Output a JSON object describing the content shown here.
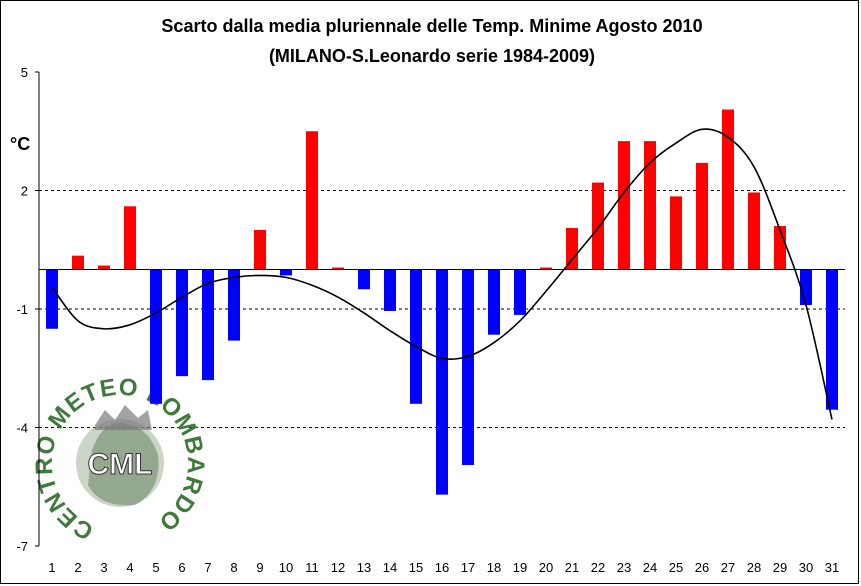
{
  "chart_data": {
    "type": "bar",
    "title": "Scarto dalla media pluriennale delle Temp. Minime Agosto 2010",
    "subtitle": "(MILANO-S.Leonardo serie 1984-2009)",
    "ylabel": "°C",
    "xlabel": "",
    "ylim": [
      -7,
      5
    ],
    "yticks": [
      5,
      2,
      -1,
      -4,
      -7
    ],
    "grid": "horizontal dashed at 2, -1, -4",
    "categories": [
      "1",
      "2",
      "3",
      "4",
      "5",
      "6",
      "7",
      "8",
      "9",
      "10",
      "11",
      "12",
      "13",
      "14",
      "15",
      "16",
      "17",
      "18",
      "19",
      "20",
      "21",
      "22",
      "23",
      "24",
      "25",
      "26",
      "27",
      "28",
      "29",
      "30",
      "31"
    ],
    "values": [
      -1.5,
      0.35,
      0.1,
      1.6,
      -3.4,
      -2.7,
      -2.8,
      -1.8,
      1.0,
      -0.15,
      3.5,
      0.05,
      -0.5,
      -1.05,
      -3.4,
      -5.7,
      -4.95,
      -1.65,
      -1.15,
      0.05,
      1.05,
      2.2,
      3.25,
      3.25,
      1.85,
      2.7,
      4.05,
      1.95,
      1.1,
      -0.9,
      -3.55
    ],
    "colors": {
      "positive": "#ff0000",
      "negative": "#0000ff",
      "trend": "#000000"
    },
    "trend_line": {
      "type": "polynomial",
      "x": [
        1,
        2,
        3,
        4,
        5,
        6,
        7,
        8,
        9,
        10,
        11,
        12,
        13,
        14,
        15,
        16,
        17,
        18,
        19,
        20,
        21,
        22,
        23,
        24,
        25,
        26,
        27,
        28,
        29,
        30,
        31
      ],
      "y": [
        -0.45,
        -1.3,
        -1.5,
        -1.4,
        -1.1,
        -0.7,
        -0.35,
        -0.2,
        -0.15,
        -0.2,
        -0.4,
        -0.7,
        -1.1,
        -1.55,
        -1.95,
        -2.25,
        -2.2,
        -1.85,
        -1.3,
        -0.55,
        0.25,
        1.05,
        1.95,
        2.7,
        3.2,
        3.55,
        3.35,
        2.6,
        1.0,
        -0.9,
        -3.8
      ]
    }
  },
  "watermark": {
    "ring_text": "CENTRO METEO LOMBARDO",
    "center_text": "CML"
  }
}
